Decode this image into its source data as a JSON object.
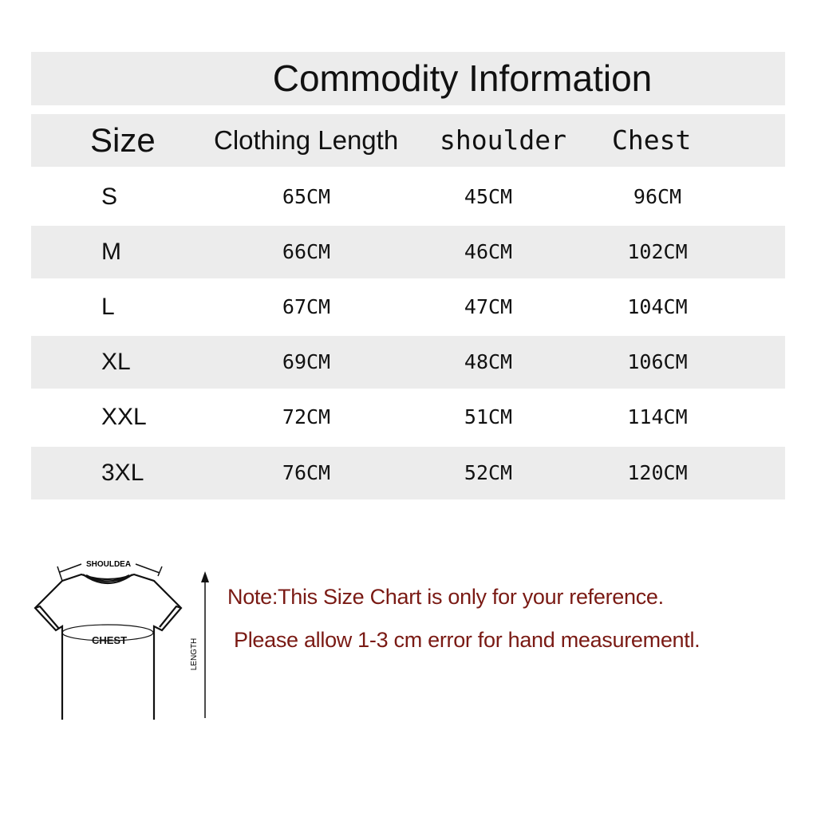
{
  "title": "Commodity Information",
  "headers": [
    "Size",
    "Clothing Length",
    "shoulder",
    "Chest"
  ],
  "rows": [
    {
      "size": "S",
      "length": "65CM",
      "shoulder": "45CM",
      "chest": "96CM"
    },
    {
      "size": "M",
      "length": "66CM",
      "shoulder": "46CM",
      "chest": "102CM"
    },
    {
      "size": "L",
      "length": "67CM",
      "shoulder": "47CM",
      "chest": "104CM"
    },
    {
      "size": "XL",
      "length": "69CM",
      "shoulder": "48CM",
      "chest": "106CM"
    },
    {
      "size": "XXL",
      "length": "72CM",
      "shoulder": "51CM",
      "chest": "114CM"
    },
    {
      "size": "3XL",
      "length": "76CM",
      "shoulder": "52CM",
      "chest": "120CM"
    }
  ],
  "diagram": {
    "shoulder_label": "SHOULDEA",
    "chest_label": "CHEST",
    "length_label": "LENGTH"
  },
  "notes": [
    "Note:This Size Chart is only for your reference.",
    "Please allow 1-3 cm error for hand measurementl."
  ],
  "colors": {
    "row_gray": "#ececec",
    "note_text": "#7a1a14"
  }
}
